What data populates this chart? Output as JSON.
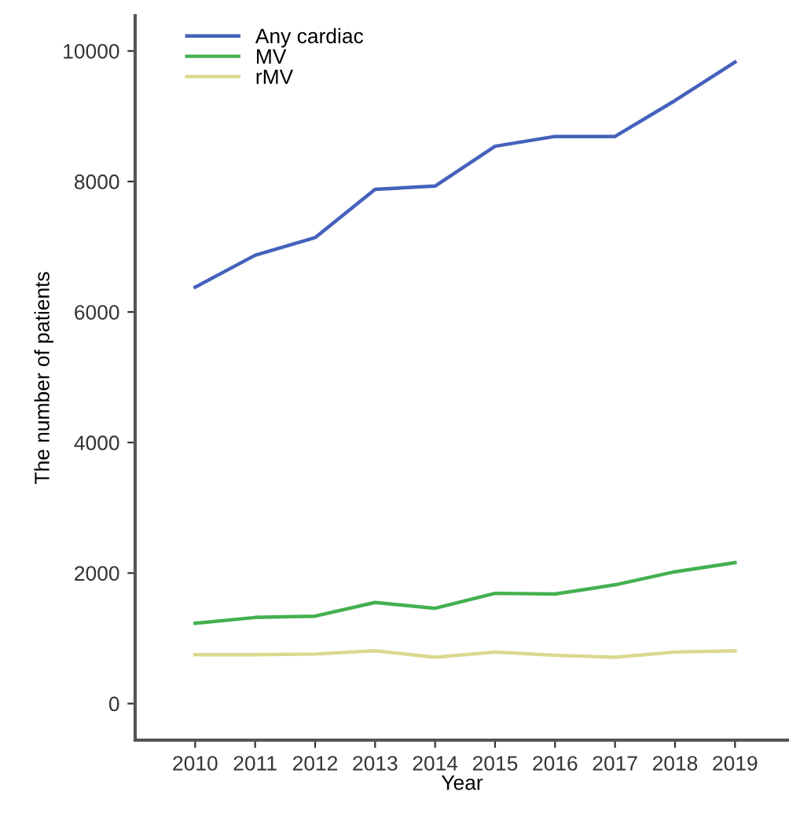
{
  "chart_data": {
    "type": "line",
    "xlabel": "Year",
    "ylabel": "The number of patients",
    "x": [
      2010,
      2011,
      2012,
      2013,
      2014,
      2015,
      2016,
      2017,
      2018,
      2019
    ],
    "series": [
      {
        "name": "Any cardiac",
        "color": "#4462bb",
        "values": [
          6380,
          6870,
          7140,
          7880,
          7930,
          8540,
          8690,
          8690,
          9240,
          9830
        ]
      },
      {
        "name": "MV",
        "color": "#43b04f",
        "values": [
          1230,
          1320,
          1340,
          1550,
          1460,
          1690,
          1680,
          1820,
          2020,
          2160
        ]
      },
      {
        "name": "rMV",
        "color": "#dcd88f",
        "values": [
          750,
          750,
          760,
          810,
          710,
          790,
          740,
          710,
          790,
          810
        ]
      }
    ],
    "xlim": [
      2009,
      2019.9
    ],
    "ylim": [
      -560,
      10540
    ],
    "xticks": [
      2010,
      2011,
      2012,
      2013,
      2014,
      2015,
      2016,
      2017,
      2018,
      2019
    ],
    "yticks": [
      0,
      2000,
      4000,
      6000,
      8000,
      10000
    ],
    "legend": "top left",
    "grid": false
  }
}
